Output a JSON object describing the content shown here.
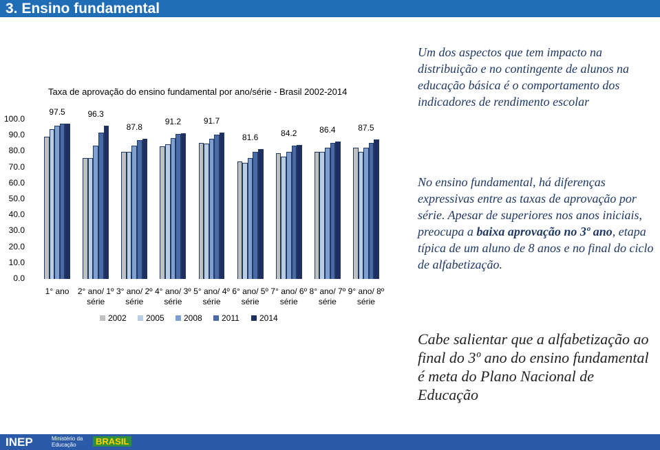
{
  "header": {
    "title": "3. Ensino fundamental"
  },
  "chart_data": {
    "type": "bar",
    "title": "Taxa de aprovação do ensino fundamental por ano/série - Brasil 2002-2014",
    "categories": [
      "1° ano",
      "2° ano/ 1º série",
      "3° ano/ 2º série",
      "4° ano/ 3º série",
      "5° ano/ 4º série",
      "6° ano/ 5º série",
      "7° ano/ 6º série",
      "8° ano/ 7º série",
      "9° ano/ 8º série"
    ],
    "series": [
      {
        "name": "2002",
        "color": "#c0c0c0",
        "values": [
          89.2,
          75.9,
          79.7,
          83.2,
          85.3,
          73.7,
          78.9,
          79.7,
          82.3
        ]
      },
      {
        "name": "2005",
        "color": "#b9cde5",
        "values": [
          94.0,
          75.9,
          79.7,
          84.5,
          84.9,
          72.8,
          76.7,
          79.7,
          79.7
        ]
      },
      {
        "name": "2008",
        "color": "#7f9fd0",
        "values": [
          96.1,
          83.6,
          83.6,
          88.4,
          87.9,
          75.9,
          79.7,
          82.3,
          82.3
        ]
      },
      {
        "name": "2011",
        "color": "#4a6aa6",
        "values": [
          97.4,
          91.8,
          87.1,
          90.9,
          90.5,
          79.7,
          83.6,
          85.3,
          85.3
        ]
      },
      {
        "name": "2014",
        "color": "#1f3060",
        "values": [
          97.5,
          96.3,
          87.8,
          91.2,
          91.7,
          81.6,
          84.2,
          86.4,
          87.5
        ]
      }
    ],
    "ylim": [
      0,
      100
    ],
    "yticks": [
      {
        "value": 0,
        "label": "0.0"
      },
      {
        "value": 10,
        "label": "10.0"
      },
      {
        "value": 20,
        "label": "20.0"
      },
      {
        "value": 30,
        "label": "30.0"
      },
      {
        "value": 40,
        "label": "40.0"
      },
      {
        "value": 50,
        "label": "50.0"
      },
      {
        "value": 60,
        "label": "60.0"
      },
      {
        "value": 70,
        "label": "70.0"
      },
      {
        "value": 80,
        "label": "80.0"
      },
      {
        "value": 90,
        "label": "90.0"
      },
      {
        "value": 100,
        "label": "100.0"
      }
    ],
    "grid": false
  },
  "notes": [
    "Um dos aspectos que tem impacto na distribuição e no contingente de alunos na educação básica é o comportamento dos indicadores de rendimento escolar",
    [
      "No ensino fundamental, há diferenças expressivas entre as taxas de aprovação por série. Apesar de superiores nos anos iniciais, preocupa a ",
      "baixa aprovação no 3º ano",
      ", etapa típica de um aluno de 8 anos e no final do ciclo de alfabetização."
    ],
    "Cabe salientar que a alfabetização ao final do 3º ano do ensino fundamental é meta do Plano Nacional de Educação"
  ],
  "footer": [
    "INEP",
    "Ministério da Educação",
    "BRASIL"
  ]
}
